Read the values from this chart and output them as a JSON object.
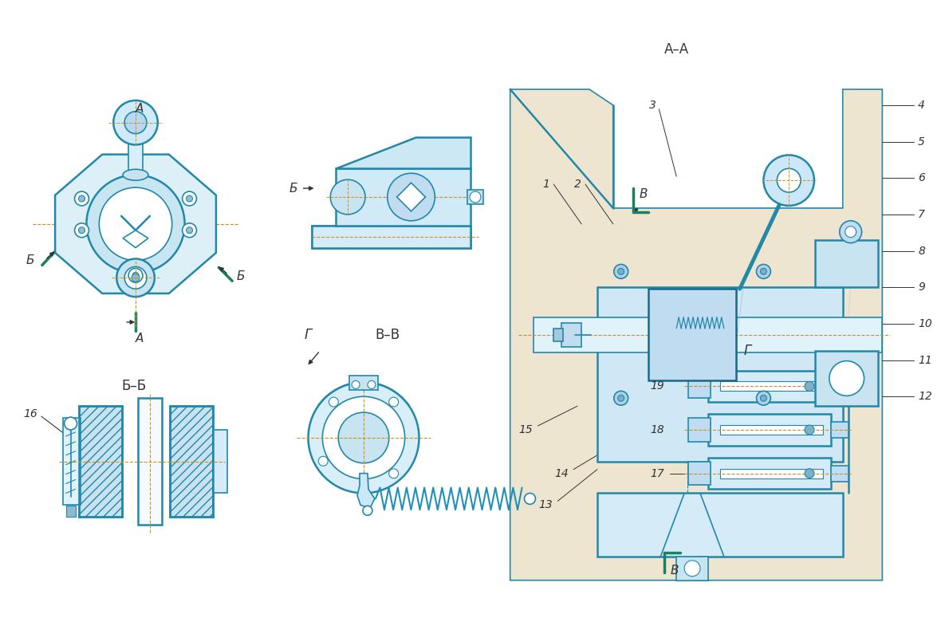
{
  "bg_color": "#ffffff",
  "lc": "#2288aa",
  "lc2": "#1a6888",
  "cc": "#c8902a",
  "gc": "#1a8060",
  "ann": "#333333",
  "lw": 1.2,
  "lw2": 1.8,
  "hfc": "#cce5f0",
  "hfc2": "#b8d8ec",
  "bodyfc": "#e8e0d0",
  "labels": {
    "AA": "А–А",
    "BB": "Б–Б",
    "VV": "В–В",
    "G": "Г",
    "A": "А",
    "B": "Б",
    "V": "В"
  }
}
